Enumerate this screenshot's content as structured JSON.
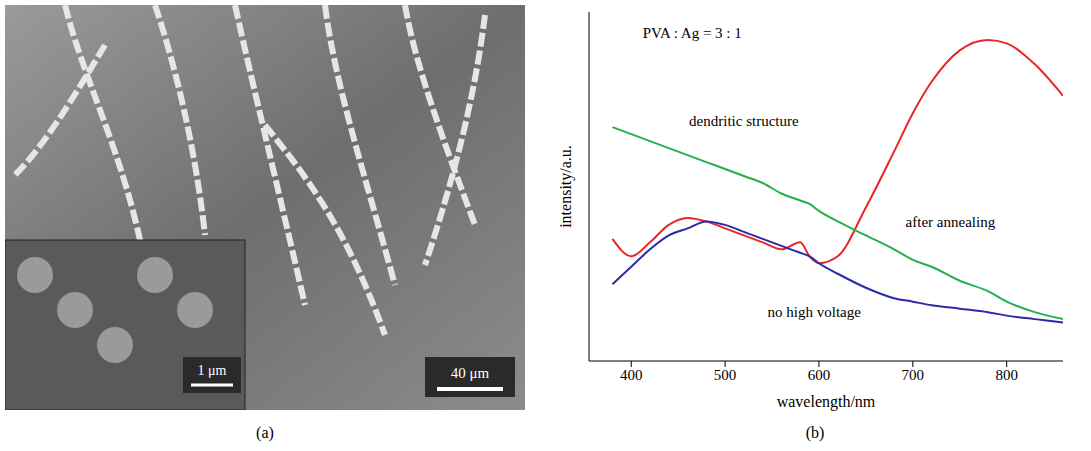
{
  "panel_a": {
    "label": "(a)",
    "scale_bar": "40 μm",
    "inset_scale_bar": "1 μm"
  },
  "panel_b": {
    "label": "(b)"
  },
  "chart_data": {
    "type": "line",
    "x_label": "wavelength/nm",
    "y_label": "intensity/a.u.",
    "xlim": [
      355,
      860
    ],
    "xticks": [
      400,
      500,
      600,
      700,
      800
    ],
    "ylim": [
      0,
      100
    ],
    "tick_labels": "x",
    "grid": false,
    "x": [
      380,
      400,
      420,
      440,
      460,
      480,
      500,
      520,
      540,
      560,
      580,
      590,
      600,
      620,
      650,
      680,
      700,
      720,
      750,
      780,
      800,
      830,
      860
    ],
    "series": [
      {
        "color": "#e8262a",
        "values": [
          35,
          30,
          34,
          39,
          41,
          40,
          38,
          36,
          34,
          32,
          34,
          30,
          28,
          30,
          44,
          60,
          71,
          80,
          89,
          92,
          91,
          85,
          76
        ]
      },
      {
        "color": "#22b14c",
        "values": [
          67,
          65,
          63,
          61,
          59,
          57,
          55,
          53,
          51,
          48,
          46,
          45,
          43,
          40,
          36,
          32,
          29,
          27,
          23,
          20,
          17,
          14,
          12
        ]
      },
      {
        "color": "#2b2aa8",
        "values": [
          22,
          27,
          32,
          36,
          38,
          40,
          39,
          37,
          35,
          33,
          31,
          30,
          28,
          25,
          21,
          18,
          17,
          16,
          15,
          14,
          13,
          12,
          11
        ]
      }
    ],
    "annotations": [
      {
        "text": "PVA : Ag = 3 : 1",
        "x": 465,
        "y": 94
      },
      {
        "text": "dendritic structure",
        "x": 520,
        "y": 69
      },
      {
        "text": "after annealing",
        "x": 740,
        "y": 40
      },
      {
        "text": "no high voltage",
        "x": 595,
        "y": 14
      }
    ]
  }
}
